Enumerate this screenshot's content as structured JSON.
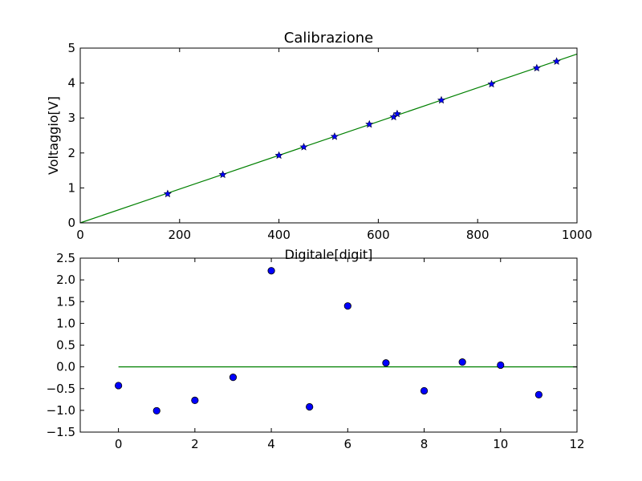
{
  "chart_data": [
    {
      "type": "scatter",
      "title": "Calibrazione",
      "xlabel": "Digitale[digit]",
      "ylabel": "Voltaggio[V]",
      "xlim": [
        0,
        1000
      ],
      "ylim": [
        0,
        5
      ],
      "xticks": [
        "0",
        "200",
        "400",
        "600",
        "800",
        "1000"
      ],
      "yticks": [
        "0",
        "1",
        "2",
        "3",
        "4",
        "5"
      ],
      "grid": false,
      "series": [
        {
          "kind": "points",
          "marker": "star",
          "color": "#0000ff",
          "points": [
            [
              176,
              0.83
            ],
            [
              287,
              1.38
            ],
            [
              400,
              1.93
            ],
            [
              450,
              2.17
            ],
            [
              512,
              2.47
            ],
            [
              582,
              2.82
            ],
            [
              631,
              3.03
            ],
            [
              638,
              3.12
            ],
            [
              727,
              3.51
            ],
            [
              828,
              3.97
            ],
            [
              919,
              4.43
            ],
            [
              959,
              4.62
            ]
          ]
        },
        {
          "kind": "line",
          "color": "#008000",
          "points": [
            [
              0,
              0.0
            ],
            [
              1000,
              4.83
            ]
          ]
        }
      ]
    },
    {
      "type": "scatter",
      "title": "",
      "xlabel": "",
      "ylabel": "",
      "xlim": [
        -1,
        12
      ],
      "ylim": [
        -1.5,
        2.5
      ],
      "xticks": [
        "0",
        "2",
        "4",
        "6",
        "8",
        "10",
        "12"
      ],
      "yticks": [
        "−1.5",
        "−1.0",
        "−0.5",
        "0.0",
        "0.5",
        "1.0",
        "1.5",
        "2.0",
        "2.5"
      ],
      "grid": false,
      "series": [
        {
          "kind": "points",
          "marker": "circle",
          "color": "#0000ff",
          "points": [
            [
              0,
              -0.43
            ],
            [
              1,
              -1.01
            ],
            [
              2,
              -0.77
            ],
            [
              3,
              -0.24
            ],
            [
              4,
              2.21
            ],
            [
              5,
              -0.92
            ],
            [
              6,
              1.4
            ],
            [
              7,
              0.09
            ],
            [
              8,
              -0.55
            ],
            [
              9,
              0.11
            ],
            [
              10,
              0.04
            ],
            [
              11,
              -0.64
            ]
          ]
        },
        {
          "kind": "line",
          "color": "#008000",
          "points": [
            [
              0,
              0.0
            ],
            [
              12,
              0.0
            ]
          ]
        }
      ]
    }
  ]
}
